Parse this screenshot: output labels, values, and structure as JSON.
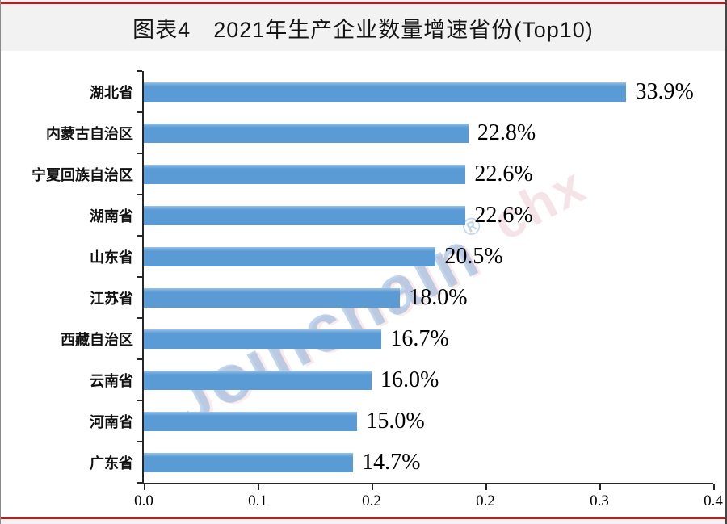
{
  "page": {
    "background": "#f2f2f2",
    "chart_background": "#ffffff",
    "border_line_color": "#b22222"
  },
  "header": {
    "title": "图表4　2021年生产企业数量增速省份(Top10)"
  },
  "watermark": {
    "text": "Joinchain",
    "registered": "®",
    "suffix": "chx",
    "color": "#82afd8"
  },
  "chart_data": {
    "type": "bar",
    "orientation": "horizontal",
    "title": "图表4　2021年生产企业数量增速省份(Top10)",
    "categories": [
      "湖北省",
      "内蒙古自治区",
      "宁夏回族自治区",
      "湖南省",
      "山东省",
      "江苏省",
      "西藏自治区",
      "云南省",
      "河南省",
      "广东省"
    ],
    "values": [
      0.339,
      0.228,
      0.226,
      0.226,
      0.205,
      0.18,
      0.167,
      0.16,
      0.15,
      0.147
    ],
    "value_labels": [
      "33.9%",
      "22.8%",
      "22.6%",
      "22.6%",
      "20.5%",
      "18.0%",
      "16.7%",
      "16.0%",
      "15.0%",
      "14.7%"
    ],
    "xlabel": "",
    "ylabel": "",
    "xlim": [
      0,
      0.4
    ],
    "x_ticks": [
      "0.0",
      "0.1",
      "0.2",
      "0.2",
      "0.3",
      "0.4"
    ],
    "x_tick_values": [
      0.0,
      0.08,
      0.16,
      0.24,
      0.32,
      0.4
    ],
    "bar_color": "#5b9bd5",
    "axis_color": "#262626",
    "grid": false,
    "legend": "none"
  }
}
